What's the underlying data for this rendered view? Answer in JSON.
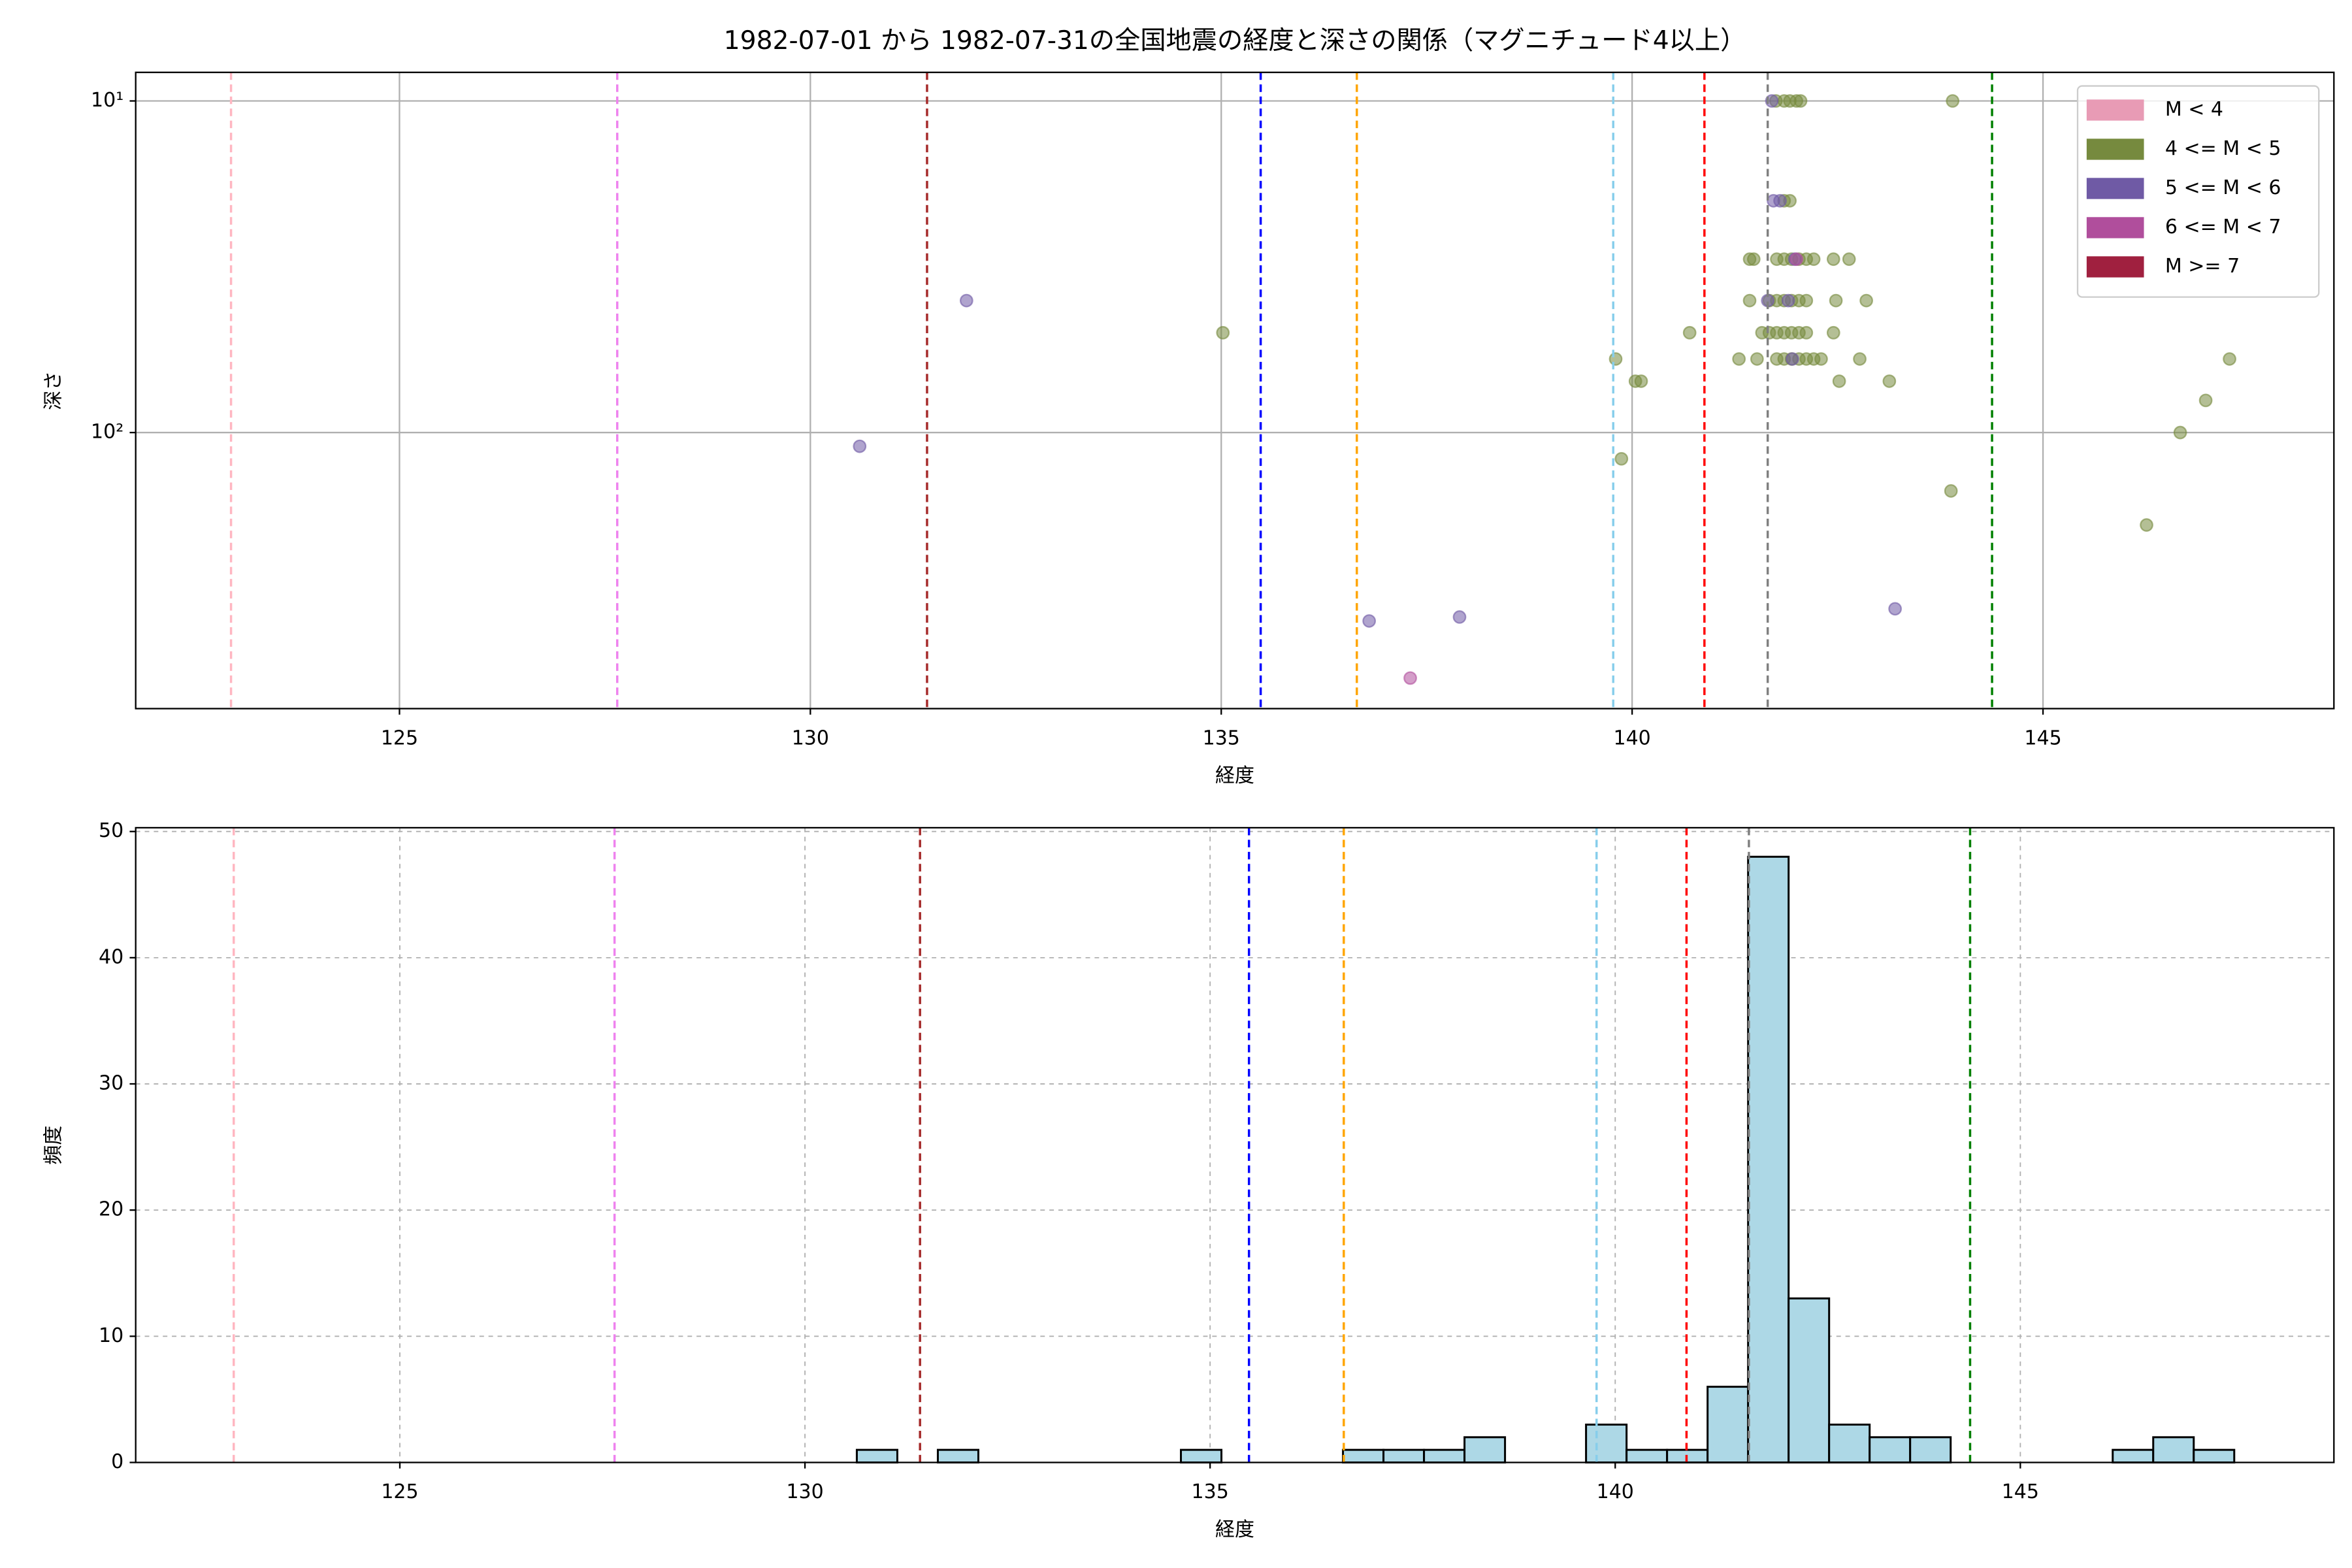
{
  "chart_data": [
    {
      "type": "scatter",
      "title": "1982-07-01 から 1982-07-31の全国地震の経度と深さの関係（マグニチュード4以上）",
      "xlabel": "経度",
      "ylabel": "深さ",
      "xlim": [
        121.79,
        148.54
      ],
      "xticks": [
        125,
        130,
        135,
        140,
        145
      ],
      "ylim": [
        8.2,
        680
      ],
      "yscale": "log",
      "yinvert": true,
      "yticks": [
        {
          "value": 10,
          "label": "10¹"
        },
        {
          "value": 100,
          "label": "10²"
        }
      ],
      "grid": true,
      "grid_style": "solid",
      "legend": "upper right",
      "vlines": [
        {
          "x": 122.95,
          "color": "#ffb6c1"
        },
        {
          "x": 127.65,
          "color": "#ee82ee"
        },
        {
          "x": 131.42,
          "color": "#a52a2a"
        },
        {
          "x": 135.48,
          "color": "#0000ff"
        },
        {
          "x": 136.65,
          "color": "#ffa500"
        },
        {
          "x": 139.77,
          "color": "#87ceeb"
        },
        {
          "x": 140.88,
          "color": "#ff0000"
        },
        {
          "x": 141.65,
          "color": "#808080"
        },
        {
          "x": 144.38,
          "color": "#008000"
        }
      ],
      "series": [
        {
          "name": "M < 4",
          "color": "#e89bb5",
          "x": [],
          "y": []
        },
        {
          "name": "4 <= M < 5",
          "color": "#768a3e",
          "x": [
            135.02,
            139.8,
            139.87,
            140.04,
            140.11,
            140.7,
            141.3,
            141.43,
            141.48,
            141.52,
            141.58,
            141.75,
            141.85,
            141.92,
            142.0,
            142.05,
            143.9,
            141.85,
            141.92,
            141.76,
            141.85,
            141.94,
            142.03,
            142.12,
            142.21,
            142.45,
            142.64,
            141.43,
            141.67,
            141.76,
            141.85,
            141.94,
            142.03,
            142.12,
            142.48,
            142.85,
            141.67,
            141.76,
            141.85,
            141.94,
            142.03,
            142.12,
            142.45,
            141.76,
            141.85,
            141.94,
            142.03,
            142.12,
            142.21,
            142.3,
            142.77,
            142.52,
            143.13,
            143.88,
            146.26,
            146.67,
            146.98,
            147.27
          ],
          "y": [
            50,
            60,
            120,
            70,
            70,
            50,
            60,
            30,
            30,
            60,
            50,
            10,
            10,
            10,
            10,
            10,
            10,
            20,
            20,
            30,
            30,
            30,
            30,
            30,
            30,
            30,
            30,
            40,
            40,
            40,
            40,
            40,
            40,
            40,
            40,
            40,
            50,
            50,
            50,
            50,
            50,
            50,
            50,
            60,
            60,
            60,
            60,
            60,
            60,
            60,
            60,
            70,
            70,
            150,
            190,
            100,
            80,
            60
          ]
        },
        {
          "name": "5 <= M < 6",
          "color": "#6f5aa5",
          "x": [
            130.6,
            131.9,
            136.8,
            137.9,
            143.2,
            141.7,
            141.72,
            141.8,
            141.65,
            141.9,
            141.95,
            141.98
          ],
          "y": [
            110,
            40,
            370,
            360,
            340,
            10,
            20,
            20,
            40,
            40,
            60,
            30
          ]
        },
        {
          "name": "6 <= M < 7",
          "color": "#b04e9c",
          "x": [
            137.3,
            142.0
          ],
          "y": [
            550,
            30
          ]
        },
        {
          "name": "M >= 7",
          "color": "#a0203f",
          "x": [],
          "y": []
        }
      ]
    },
    {
      "type": "histogram",
      "xlabel": "経度",
      "ylabel": "頻度",
      "xlim": [
        121.74,
        148.87
      ],
      "xticks": [
        125,
        130,
        135,
        140,
        145
      ],
      "ylim": [
        0,
        50.3
      ],
      "yticks": [
        0,
        10,
        20,
        30,
        40,
        50
      ],
      "grid": true,
      "grid_style": "dashed",
      "color": "#add8e6",
      "edgecolor": "#000000",
      "bins": [
        130.64,
        131.14,
        131.64,
        132.14,
        132.64,
        133.14,
        133.64,
        134.14,
        134.64,
        135.14,
        135.64,
        136.14,
        136.64,
        137.14,
        137.64,
        138.14,
        138.64,
        139.14,
        139.64,
        140.14,
        140.64,
        141.14,
        141.64,
        142.14,
        142.64,
        143.14,
        143.64,
        144.14,
        144.64,
        145.14,
        145.64,
        146.14,
        146.64,
        147.14,
        147.64
      ],
      "counts": [
        1,
        0,
        1,
        0,
        0,
        0,
        0,
        0,
        1,
        0,
        0,
        0,
        1,
        1,
        1,
        2,
        0,
        0,
        3,
        1,
        1,
        6,
        48,
        13,
        3,
        2,
        2,
        0,
        0,
        0,
        0,
        1,
        2,
        1
      ],
      "vlines": [
        {
          "x": 122.95,
          "color": "#ffb6c1"
        },
        {
          "x": 127.65,
          "color": "#ee82ee"
        },
        {
          "x": 131.42,
          "color": "#a52a2a"
        },
        {
          "x": 135.48,
          "color": "#0000ff"
        },
        {
          "x": 136.65,
          "color": "#ffa500"
        },
        {
          "x": 139.77,
          "color": "#87ceeb"
        },
        {
          "x": 140.88,
          "color": "#ff0000"
        },
        {
          "x": 141.65,
          "color": "#808080"
        },
        {
          "x": 144.38,
          "color": "#008000"
        }
      ]
    }
  ]
}
